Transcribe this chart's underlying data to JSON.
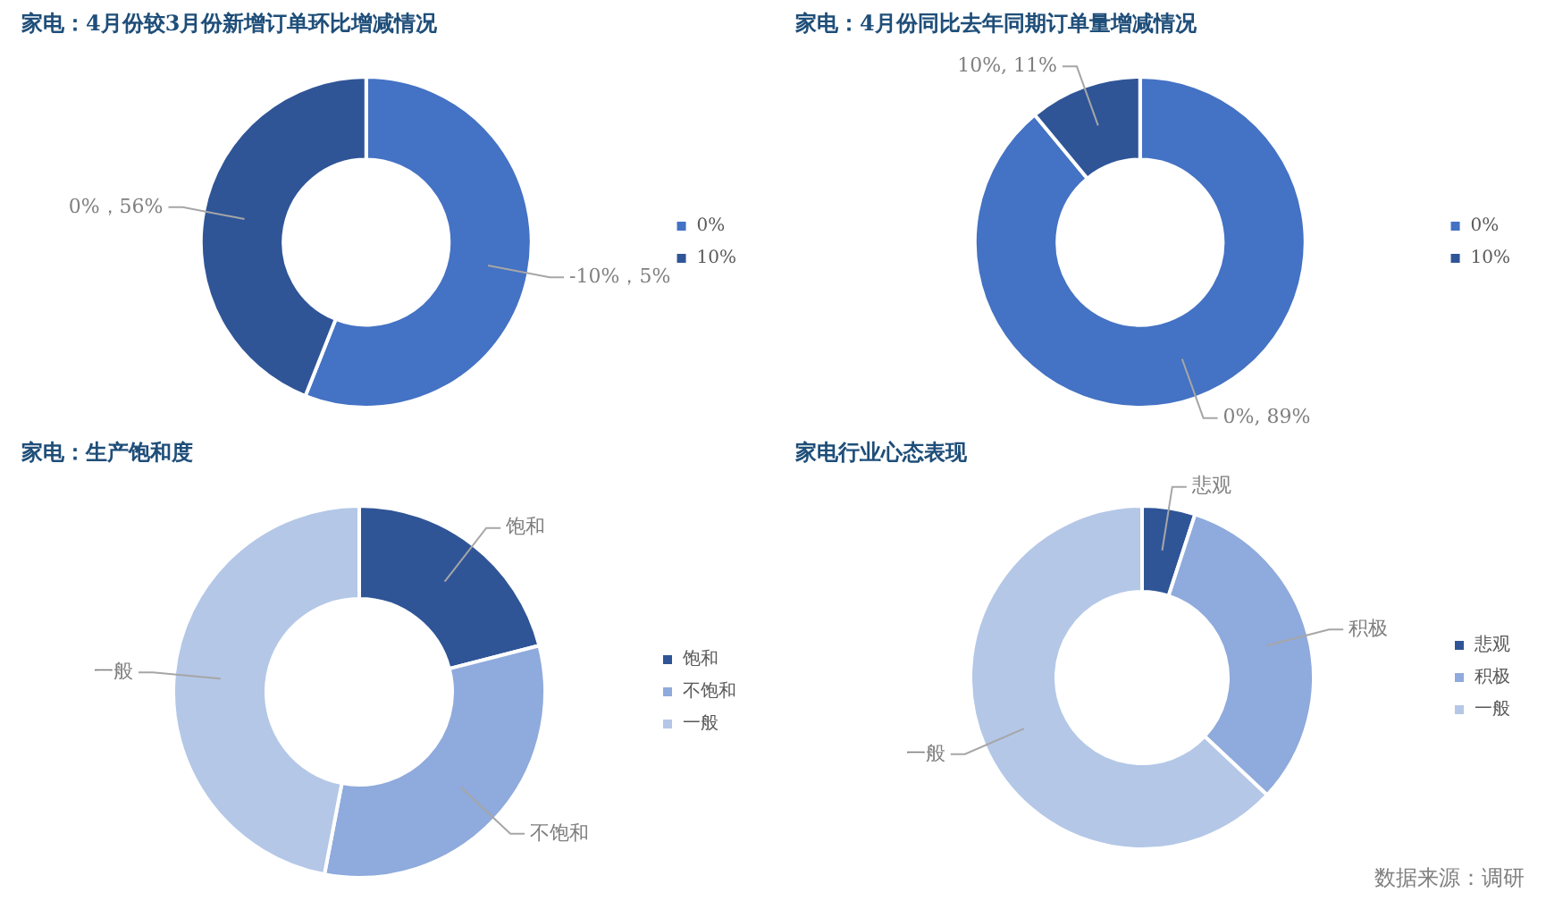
{
  "chart_data": [
    {
      "type": "donut",
      "title": "家电：4月份较3月份新增订单环比增减情况",
      "categories": [
        "0%",
        "10%"
      ],
      "values": [
        56,
        44
      ],
      "colors": [
        "#4472c4",
        "#2f5597"
      ],
      "legend": "right",
      "annotations": [
        {
          "text": "-10%，5%",
          "x": "0%"
        },
        {
          "text": "0%，56%",
          "x": "10%"
        }
      ]
    },
    {
      "type": "donut",
      "title": "家电：4月份同比去年同期订单量增减情况",
      "categories": [
        "0%",
        "10%"
      ],
      "values": [
        89,
        11
      ],
      "colors": [
        "#4472c4",
        "#2f5597"
      ],
      "legend": "right",
      "value_labels": [
        "0%, 89%",
        "10%, 11%"
      ]
    },
    {
      "type": "donut",
      "title": "家电：生产饱和度",
      "categories": [
        "饱和",
        "不饱和",
        "一般"
      ],
      "values": [
        21,
        32,
        47
      ],
      "colors": [
        "#2f5597",
        "#8faadc",
        "#b4c7e7"
      ],
      "legend": "right",
      "value_labels": [
        "饱和",
        "不饱和",
        "一般"
      ]
    },
    {
      "type": "donut",
      "title": "家电行业心态表现",
      "categories": [
        "悲观",
        "积极",
        "一般"
      ],
      "values": [
        5,
        32,
        63
      ],
      "colors": [
        "#2f5597",
        "#8faadc",
        "#b4c7e7"
      ],
      "legend": "right",
      "value_labels": [
        "悲观",
        "积极",
        "一般"
      ],
      "annotations": [
        "数据来源：调研"
      ]
    }
  ]
}
